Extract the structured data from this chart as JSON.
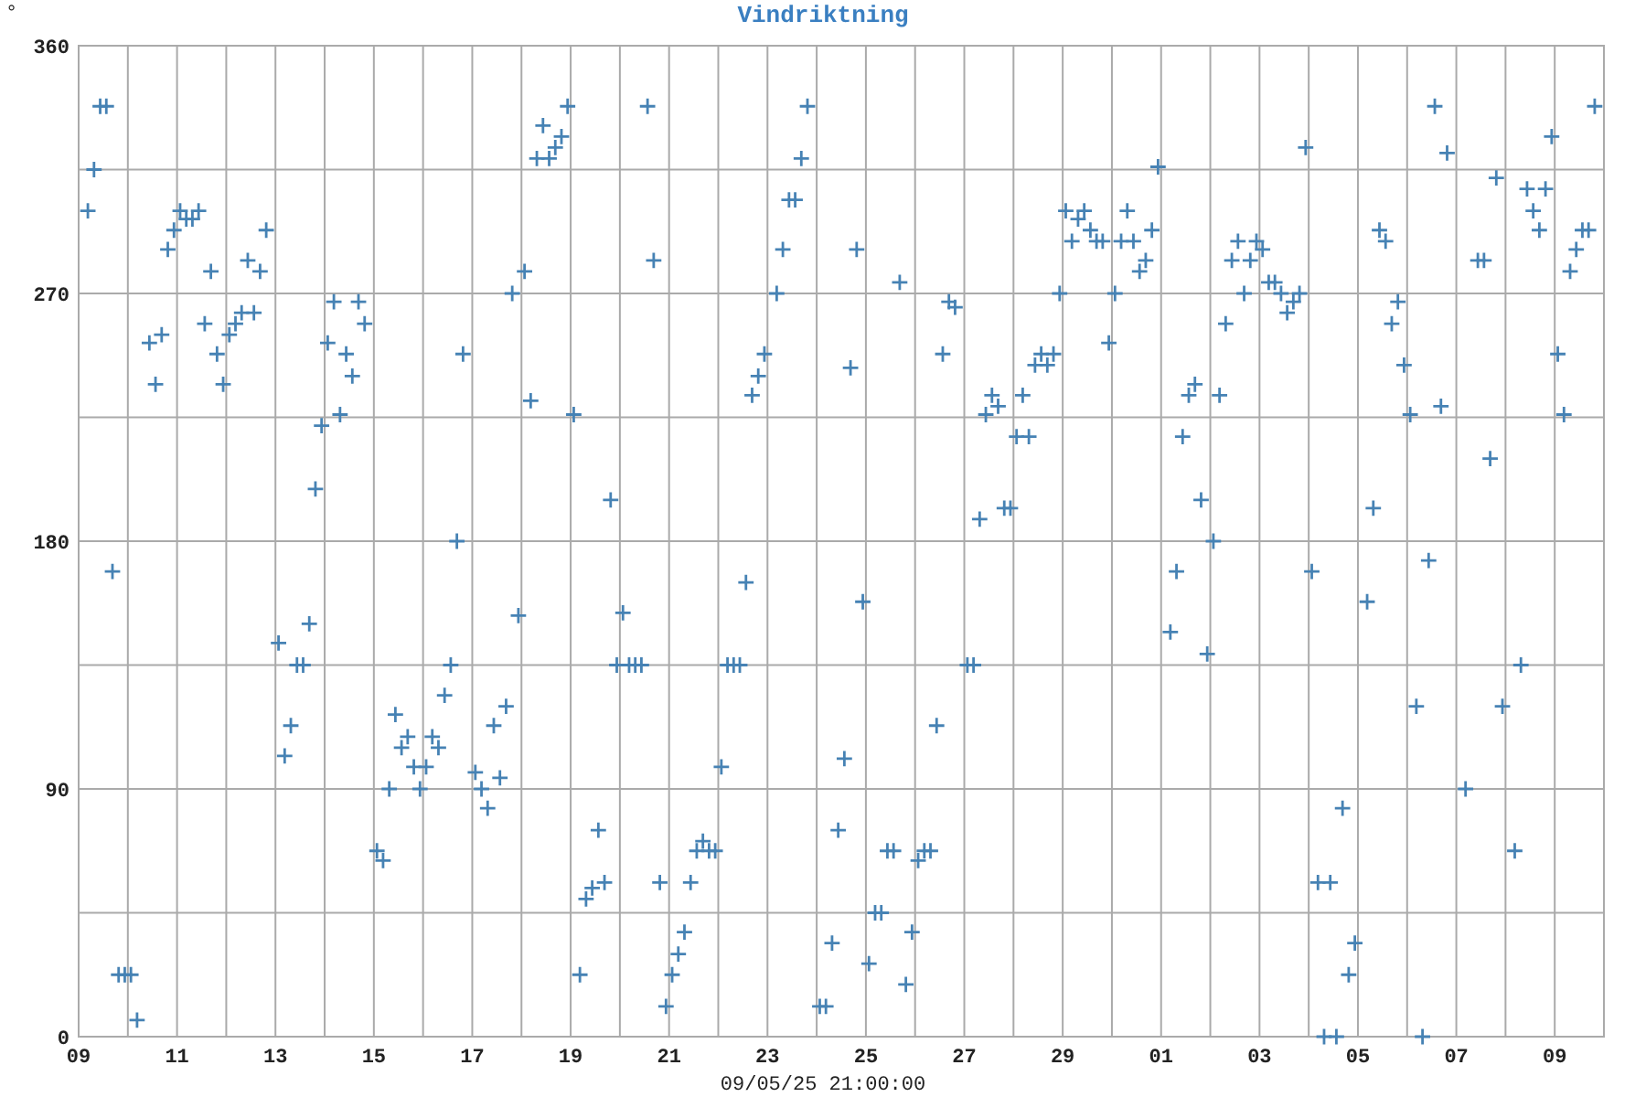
{
  "chart_data": {
    "type": "scatter",
    "title": "Vindriktning",
    "xlabel": "09/05/25 21:00:00",
    "ylabel": "°",
    "color": "#4682b4",
    "marker": "cross",
    "grid": true,
    "xlim": [
      "--04-09",
      "--05-10"
    ],
    "xticks": [
      {
        "value": "--04-09",
        "label": "09"
      },
      {
        "value": "--04-10",
        "label": null
      },
      {
        "value": "--04-11",
        "label": "11"
      },
      {
        "value": "--04-12",
        "label": null
      },
      {
        "value": "--04-13",
        "label": "13"
      },
      {
        "value": "--04-14",
        "label": null
      },
      {
        "value": "--04-15",
        "label": "15"
      },
      {
        "value": "--04-16",
        "label": null
      },
      {
        "value": "--04-17",
        "label": "17"
      },
      {
        "value": "--04-18",
        "label": null
      },
      {
        "value": "--04-19",
        "label": "19"
      },
      {
        "value": "--04-20",
        "label": null
      },
      {
        "value": "--04-21",
        "label": "21"
      },
      {
        "value": "--04-22",
        "label": null
      },
      {
        "value": "--04-23",
        "label": "23"
      },
      {
        "value": "--04-24",
        "label": null
      },
      {
        "value": "--04-25",
        "label": "25"
      },
      {
        "value": "--04-26",
        "label": null
      },
      {
        "value": "--04-27",
        "label": "27"
      },
      {
        "value": "--04-28",
        "label": null
      },
      {
        "value": "--04-29",
        "label": "29"
      },
      {
        "value": "--04-30",
        "label": null
      },
      {
        "value": "--05-01",
        "label": "01"
      },
      {
        "value": "--05-02",
        "label": null
      },
      {
        "value": "--05-03",
        "label": "03"
      },
      {
        "value": "--05-04",
        "label": null
      },
      {
        "value": "--05-05",
        "label": "05"
      },
      {
        "value": "--05-06",
        "label": null
      },
      {
        "value": "--05-07",
        "label": "07"
      },
      {
        "value": "--05-08",
        "label": null
      },
      {
        "value": "--05-09",
        "label": "09"
      }
    ],
    "ylim": [
      0,
      360
    ],
    "yticks": [
      0,
      {
        "value": 45,
        "label": null
      },
      90,
      {
        "value": 135,
        "label": null
      },
      180,
      {
        "value": 225,
        "label": null
      },
      270,
      {
        "value": 315,
        "label": null
      },
      360
    ],
    "x": [
      "--04-09T04:30",
      "--04-09T07:30",
      "--04-09T10:30",
      "--04-09T13:30",
      "--04-09T16:30",
      "--04-09T19:30",
      "--04-09T22:30",
      "--04-10T01:30",
      "--04-10T04:30",
      "--04-10T10:30",
      "--04-10T13:30",
      "--04-10T16:30",
      "--04-10T19:30",
      "--04-10T22:30",
      "--04-11T01:30",
      "--04-11T04:30",
      "--04-11T07:30",
      "--04-11T10:30",
      "--04-11T13:30",
      "--04-11T16:30",
      "--04-11T19:30",
      "--04-11T22:30",
      "--04-12T01:30",
      "--04-12T04:30",
      "--04-12T07:30",
      "--04-12T10:30",
      "--04-12T13:30",
      "--04-12T16:30",
      "--04-12T19:30",
      "--04-13T01:30",
      "--04-13T04:30",
      "--04-13T07:30",
      "--04-13T10:30",
      "--04-13T13:30",
      "--04-13T16:30",
      "--04-13T19:30",
      "--04-13T22:30",
      "--04-14T01:30",
      "--04-14T04:30",
      "--04-14T07:30",
      "--04-14T10:30",
      "--04-14T13:30",
      "--04-14T16:30",
      "--04-14T19:30",
      "--04-15T01:30",
      "--04-15T04:30",
      "--04-15T07:30",
      "--04-15T10:30",
      "--04-15T13:30",
      "--04-15T16:30",
      "--04-15T19:30",
      "--04-15T22:30",
      "--04-16T01:30",
      "--04-16T04:30",
      "--04-16T07:30",
      "--04-16T10:30",
      "--04-16T13:30",
      "--04-16T16:30",
      "--04-16T19:30",
      "--04-17T01:30",
      "--04-17T04:30",
      "--04-17T07:30",
      "--04-17T10:30",
      "--04-17T13:30",
      "--04-17T16:30",
      "--04-17T19:30",
      "--04-17T22:30",
      "--04-18T01:30",
      "--04-18T04:30",
      "--04-18T07:30",
      "--04-18T10:30",
      "--04-18T13:30",
      "--04-18T16:30",
      "--04-18T19:30",
      "--04-18T22:30",
      "--04-19T01:30",
      "--04-19T04:30",
      "--04-19T07:30",
      "--04-19T10:30",
      "--04-19T13:30",
      "--04-19T16:30",
      "--04-19T19:30",
      "--04-19T22:30",
      "--04-20T01:30",
      "--04-20T04:30",
      "--04-20T07:30",
      "--04-20T10:30",
      "--04-20T13:30",
      "--04-20T16:30",
      "--04-20T19:30",
      "--04-20T22:30",
      "--04-21T01:30",
      "--04-21T04:30",
      "--04-21T07:30",
      "--04-21T10:30",
      "--04-21T13:30",
      "--04-21T16:30",
      "--04-21T19:30",
      "--04-21T22:30",
      "--04-22T01:30",
      "--04-22T04:30",
      "--04-22T07:30",
      "--04-22T10:30",
      "--04-22T13:30",
      "--04-22T16:30",
      "--04-22T19:30",
      "--04-22T22:30",
      "--04-23T04:30",
      "--04-23T07:30",
      "--04-23T10:30",
      "--04-23T13:30",
      "--04-23T16:30",
      "--04-23T19:30",
      "--04-24T01:30",
      "--04-24T04:30",
      "--04-24T07:30",
      "--04-24T10:30",
      "--04-24T13:30",
      "--04-24T16:30",
      "--04-24T19:30",
      "--04-24T22:30",
      "--04-25T01:30",
      "--04-25T04:30",
      "--04-25T07:30",
      "--04-25T10:30",
      "--04-25T13:30",
      "--04-25T16:30",
      "--04-25T19:30",
      "--04-25T22:30",
      "--04-26T01:30",
      "--04-26T04:30",
      "--04-26T07:30",
      "--04-26T10:30",
      "--04-26T13:30",
      "--04-26T16:30",
      "--04-26T19:30",
      "--04-27T01:30",
      "--04-27T04:30",
      "--04-27T07:30",
      "--04-27T10:30",
      "--04-27T13:30",
      "--04-27T16:30",
      "--04-27T19:30",
      "--04-27T22:30",
      "--04-28T01:30",
      "--04-28T04:30",
      "--04-28T07:30",
      "--04-28T10:30",
      "--04-28T13:30",
      "--04-28T16:30",
      "--04-28T19:30",
      "--04-28T22:30",
      "--04-29T01:30",
      "--04-29T04:30",
      "--04-29T07:30",
      "--04-29T10:30",
      "--04-29T13:30",
      "--04-29T16:30",
      "--04-29T19:30",
      "--04-29T22:30",
      "--04-30T01:30",
      "--04-30T04:30",
      "--04-30T07:30",
      "--04-30T10:30",
      "--04-30T13:30",
      "--04-30T16:30",
      "--04-30T19:30",
      "--04-30T22:30",
      "--05-01T04:30",
      "--05-01T07:30",
      "--05-01T10:30",
      "--05-01T13:30",
      "--05-01T16:30",
      "--05-01T19:30",
      "--05-01T22:30",
      "--05-02T01:30",
      "--05-02T04:30",
      "--05-02T07:30",
      "--05-02T10:30",
      "--05-02T13:30",
      "--05-02T16:30",
      "--05-02T19:30",
      "--05-02T22:30",
      "--05-03T01:30",
      "--05-03T04:30",
      "--05-03T07:30",
      "--05-03T10:30",
      "--05-03T13:30",
      "--05-03T16:30",
      "--05-03T19:30",
      "--05-03T22:30",
      "--05-04T01:30",
      "--05-04T04:30",
      "--05-04T07:30",
      "--05-04T10:30",
      "--05-04T13:30",
      "--05-04T16:30",
      "--05-04T19:30",
      "--05-04T22:30",
      "--05-05T04:30",
      "--05-05T07:30",
      "--05-05T10:30",
      "--05-05T13:30",
      "--05-05T16:30",
      "--05-05T19:30",
      "--05-05T22:30",
      "--05-06T01:30",
      "--05-06T04:30",
      "--05-06T07:30",
      "--05-06T10:30",
      "--05-06T13:30",
      "--05-06T16:30",
      "--05-06T19:30",
      "--05-07T04:30",
      "--05-07T10:30",
      "--05-07T13:30",
      "--05-07T16:30",
      "--05-07T19:30",
      "--05-07T22:30",
      "--05-08T04:30",
      "--05-08T07:30",
      "--05-08T10:30",
      "--05-08T13:30",
      "--05-08T16:30",
      "--05-08T19:30",
      "--05-08T22:30",
      "--05-09T01:30",
      "--05-09T04:30",
      "--05-09T07:30",
      "--05-09T10:30",
      "--05-09T13:30",
      "--05-09T16:30",
      "--05-09T19:30"
    ],
    "values": [
      300,
      315,
      338,
      338,
      169,
      22.5,
      22.5,
      22.5,
      6,
      252,
      237,
      255,
      286,
      293,
      300,
      297,
      297,
      300,
      259,
      278,
      248,
      237,
      255,
      259,
      263,
      282,
      263,
      278,
      293,
      143,
      102,
      113,
      135,
      135,
      150,
      199,
      222,
      252,
      267,
      226,
      248,
      240,
      267,
      259,
      67.5,
      64,
      90,
      117,
      105,
      109,
      98,
      90,
      98,
      109,
      105,
      124,
      135,
      180,
      248,
      96,
      90,
      83,
      113,
      94,
      120,
      270,
      153,
      278,
      231,
      319,
      331,
      319,
      323,
      327,
      338,
      226,
      22.5,
      50,
      54,
      75,
      56,
      195,
      135,
      154,
      135,
      135,
      135,
      338,
      282,
      56,
      11,
      22.5,
      30,
      38,
      56,
      67.5,
      71,
      67.5,
      67.5,
      98,
      135,
      135,
      135,
      165,
      233,
      240,
      248,
      270,
      286,
      304,
      304,
      319,
      338,
      11,
      11,
      34,
      75,
      101,
      243,
      286,
      158,
      26.5,
      45,
      45,
      67.5,
      67.5,
      274,
      19,
      38,
      64,
      67.5,
      67.5,
      113,
      248,
      267,
      265,
      135,
      135,
      188,
      226,
      233,
      229,
      192,
      192,
      218,
      233,
      218,
      244,
      248,
      244,
      248,
      270,
      300,
      289,
      297,
      300,
      293,
      289,
      289,
      252,
      270,
      289,
      300,
      289,
      278,
      282,
      293,
      316,
      147,
      169,
      218,
      233,
      237,
      195,
      139,
      180,
      233,
      259,
      282,
      289,
      270,
      282,
      289,
      286,
      274,
      274,
      270,
      263,
      267,
      270,
      323,
      169,
      56,
      0,
      56,
      0,
      83,
      22.5,
      34,
      158,
      192,
      293,
      289,
      259,
      267,
      244,
      226,
      120,
      0,
      173,
      338,
      229,
      321,
      90,
      282,
      282,
      210,
      312,
      120,
      67.5,
      135,
      308,
      300,
      293,
      308,
      327,
      248,
      226,
      278,
      286,
      293,
      293,
      338
    ]
  }
}
